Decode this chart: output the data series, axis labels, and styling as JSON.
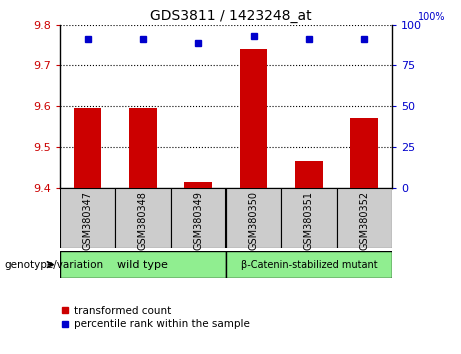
{
  "title": "GDS3811 / 1423248_at",
  "samples": [
    "GSM380347",
    "GSM380348",
    "GSM380349",
    "GSM380350",
    "GSM380351",
    "GSM380352"
  ],
  "transformed_count": [
    9.595,
    9.595,
    9.415,
    9.74,
    9.465,
    9.57
  ],
  "percentile_rank": [
    91,
    91,
    89,
    93,
    91,
    91
  ],
  "ylim_left": [
    9.4,
    9.8
  ],
  "ylim_right": [
    0,
    100
  ],
  "yticks_left": [
    9.4,
    9.5,
    9.6,
    9.7,
    9.8
  ],
  "yticks_right": [
    0,
    25,
    50,
    75,
    100
  ],
  "group_labels": [
    "wild type",
    "β-Catenin-stabilized mutant"
  ],
  "group_color": "#90ee90",
  "bar_color": "#cc0000",
  "dot_color": "#0000cc",
  "tick_area_color": "#cccccc",
  "legend_red_label": "transformed count",
  "legend_blue_label": "percentile rank within the sample",
  "genotype_label": "genotype/variation",
  "bar_width": 0.5,
  "baseline": 9.4,
  "bg_color": "#ffffff"
}
